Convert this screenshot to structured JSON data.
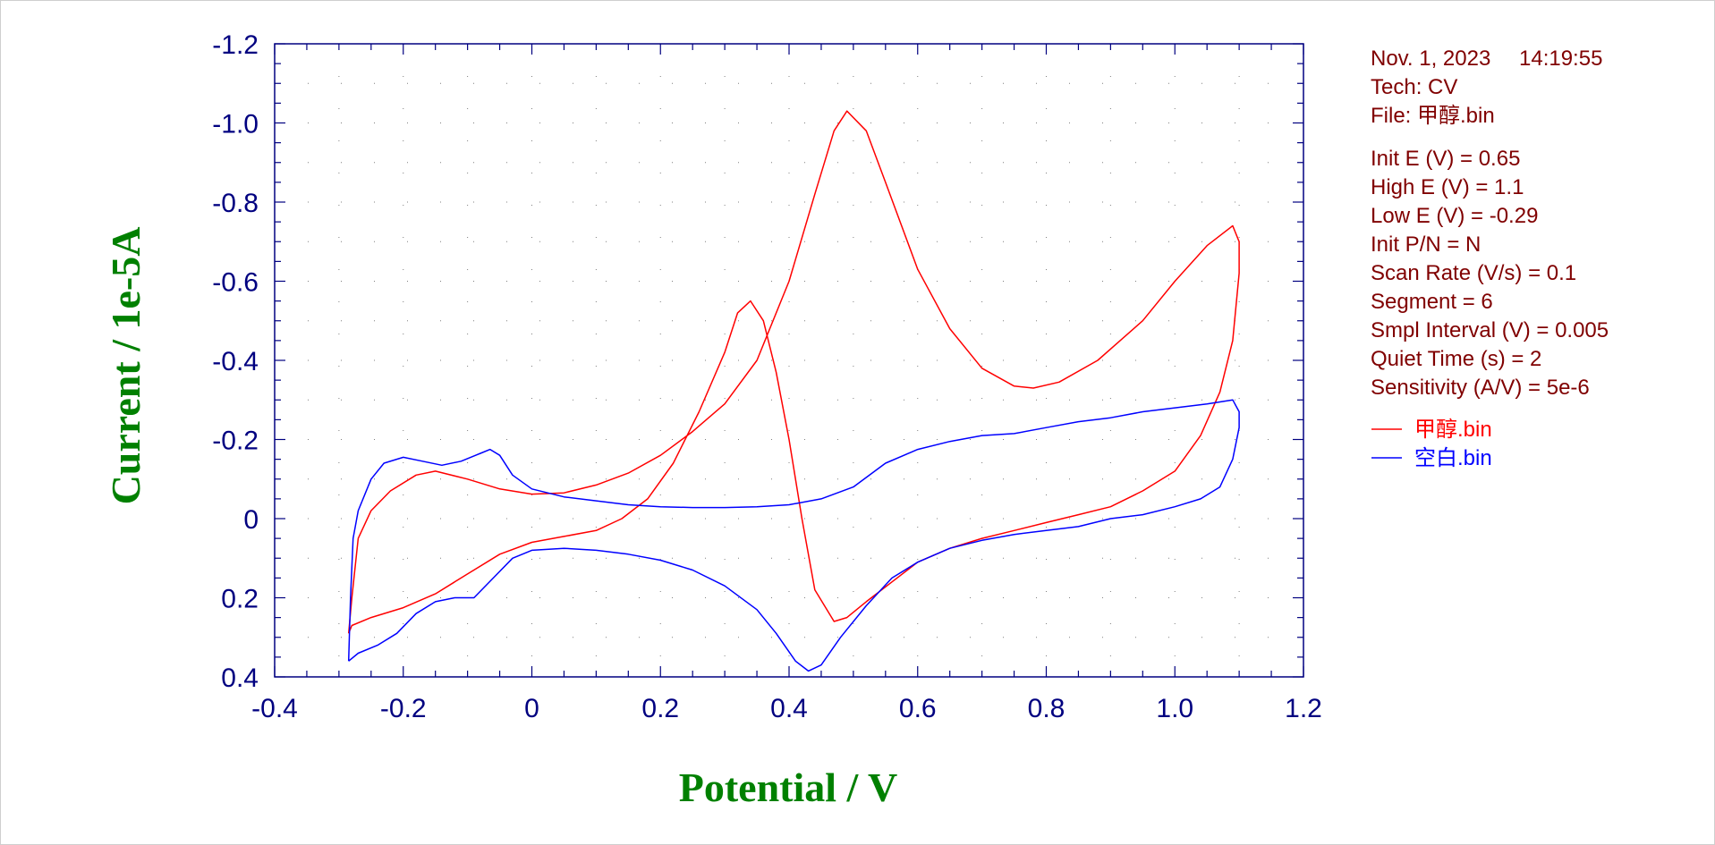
{
  "info": {
    "date": "Nov. 1, 2023",
    "time": "14:19:55",
    "tech": "Tech: CV",
    "file": "File: 甲醇.bin",
    "params": [
      "Init E (V) = 0.65",
      "High E (V) = 1.1",
      "Low E (V) = -0.29",
      "Init P/N = N",
      "Scan Rate (V/s) = 0.1",
      "Segment = 6",
      "Smpl Interval (V) = 0.005",
      "Quiet Time (s) = 2",
      "Sensitivity (A/V) = 5e-6"
    ]
  },
  "colors": {
    "axis": "#000080",
    "grid": "#7f7f7f",
    "axis_title": "#008000",
    "info_text": "#800000",
    "methanol": "#ff0000",
    "blank": "#0000ff"
  },
  "chart_data": {
    "type": "line",
    "xlabel": "Potential / V",
    "ylabel": "Current / 1e-5A",
    "xlim": [
      -0.4,
      1.2
    ],
    "ylim": [
      0.4,
      -1.2
    ],
    "x_ticks": [
      "-0.4",
      "-0.2",
      "0",
      "0.2",
      "0.4",
      "0.6",
      "0.8",
      "1.0",
      "1.2"
    ],
    "y_ticks": [
      "-1.2",
      "-1.0",
      "-0.8",
      "-0.6",
      "-0.4",
      "-0.2",
      "0",
      "0.2",
      "0.4"
    ],
    "grid": "dotted",
    "legend": "right",
    "series": [
      {
        "name": "甲醇.bin",
        "color": "#ff0000",
        "points": [
          [
            -0.285,
            0.29
          ],
          [
            -0.28,
            0.2
          ],
          [
            -0.27,
            0.05
          ],
          [
            -0.25,
            -0.02
          ],
          [
            -0.22,
            -0.07
          ],
          [
            -0.18,
            -0.11
          ],
          [
            -0.15,
            -0.12
          ],
          [
            -0.1,
            -0.1
          ],
          [
            -0.05,
            -0.075
          ],
          [
            0.0,
            -0.062
          ],
          [
            0.05,
            -0.065
          ],
          [
            0.1,
            -0.085
          ],
          [
            0.15,
            -0.115
          ],
          [
            0.2,
            -0.16
          ],
          [
            0.25,
            -0.22
          ],
          [
            0.3,
            -0.29
          ],
          [
            0.35,
            -0.4
          ],
          [
            0.4,
            -0.6
          ],
          [
            0.44,
            -0.82
          ],
          [
            0.47,
            -0.98
          ],
          [
            0.49,
            -1.03
          ],
          [
            0.52,
            -0.98
          ],
          [
            0.55,
            -0.85
          ],
          [
            0.6,
            -0.63
          ],
          [
            0.65,
            -0.48
          ],
          [
            0.7,
            -0.38
          ],
          [
            0.75,
            -0.335
          ],
          [
            0.78,
            -0.33
          ],
          [
            0.82,
            -0.345
          ],
          [
            0.88,
            -0.4
          ],
          [
            0.95,
            -0.5
          ],
          [
            1.0,
            -0.6
          ],
          [
            1.05,
            -0.69
          ],
          [
            1.09,
            -0.74
          ],
          [
            1.1,
            -0.7
          ],
          [
            1.1,
            -0.62
          ],
          [
            1.09,
            -0.45
          ],
          [
            1.07,
            -0.32
          ],
          [
            1.04,
            -0.21
          ],
          [
            1.0,
            -0.12
          ],
          [
            0.95,
            -0.07
          ],
          [
            0.9,
            -0.03
          ],
          [
            0.85,
            -0.01
          ],
          [
            0.8,
            0.01
          ],
          [
            0.75,
            0.03
          ],
          [
            0.7,
            0.05
          ],
          [
            0.65,
            0.075
          ],
          [
            0.6,
            0.11
          ],
          [
            0.56,
            0.16
          ],
          [
            0.52,
            0.21
          ],
          [
            0.49,
            0.25
          ],
          [
            0.47,
            0.26
          ],
          [
            0.44,
            0.18
          ],
          [
            0.42,
            0.0
          ],
          [
            0.4,
            -0.2
          ],
          [
            0.38,
            -0.37
          ],
          [
            0.36,
            -0.5
          ],
          [
            0.34,
            -0.55
          ],
          [
            0.32,
            -0.52
          ],
          [
            0.3,
            -0.42
          ],
          [
            0.26,
            -0.27
          ],
          [
            0.22,
            -0.14
          ],
          [
            0.18,
            -0.05
          ],
          [
            0.14,
            0.0
          ],
          [
            0.1,
            0.03
          ],
          [
            0.05,
            0.045
          ],
          [
            0.0,
            0.06
          ],
          [
            -0.05,
            0.09
          ],
          [
            -0.1,
            0.14
          ],
          [
            -0.15,
            0.19
          ],
          [
            -0.2,
            0.225
          ],
          [
            -0.25,
            0.25
          ],
          [
            -0.28,
            0.27
          ],
          [
            -0.285,
            0.29
          ]
        ]
      },
      {
        "name": "空白.bin",
        "color": "#0000ff",
        "points": [
          [
            -0.285,
            0.36
          ],
          [
            -0.282,
            0.2
          ],
          [
            -0.278,
            0.05
          ],
          [
            -0.27,
            -0.02
          ],
          [
            -0.25,
            -0.1
          ],
          [
            -0.23,
            -0.14
          ],
          [
            -0.2,
            -0.155
          ],
          [
            -0.17,
            -0.145
          ],
          [
            -0.14,
            -0.135
          ],
          [
            -0.11,
            -0.145
          ],
          [
            -0.08,
            -0.165
          ],
          [
            -0.065,
            -0.175
          ],
          [
            -0.05,
            -0.16
          ],
          [
            -0.03,
            -0.11
          ],
          [
            0.0,
            -0.075
          ],
          [
            0.05,
            -0.055
          ],
          [
            0.1,
            -0.045
          ],
          [
            0.15,
            -0.035
          ],
          [
            0.2,
            -0.03
          ],
          [
            0.25,
            -0.028
          ],
          [
            0.3,
            -0.028
          ],
          [
            0.35,
            -0.03
          ],
          [
            0.4,
            -0.035
          ],
          [
            0.45,
            -0.05
          ],
          [
            0.5,
            -0.08
          ],
          [
            0.55,
            -0.14
          ],
          [
            0.6,
            -0.175
          ],
          [
            0.65,
            -0.195
          ],
          [
            0.7,
            -0.21
          ],
          [
            0.75,
            -0.215
          ],
          [
            0.8,
            -0.23
          ],
          [
            0.85,
            -0.245
          ],
          [
            0.9,
            -0.255
          ],
          [
            0.95,
            -0.27
          ],
          [
            1.0,
            -0.28
          ],
          [
            1.05,
            -0.29
          ],
          [
            1.09,
            -0.3
          ],
          [
            1.1,
            -0.27
          ],
          [
            1.1,
            -0.23
          ],
          [
            1.09,
            -0.15
          ],
          [
            1.07,
            -0.08
          ],
          [
            1.04,
            -0.05
          ],
          [
            1.0,
            -0.03
          ],
          [
            0.95,
            -0.01
          ],
          [
            0.9,
            0.0
          ],
          [
            0.85,
            0.02
          ],
          [
            0.8,
            0.03
          ],
          [
            0.75,
            0.04
          ],
          [
            0.7,
            0.055
          ],
          [
            0.65,
            0.075
          ],
          [
            0.6,
            0.11
          ],
          [
            0.56,
            0.15
          ],
          [
            0.52,
            0.22
          ],
          [
            0.48,
            0.3
          ],
          [
            0.45,
            0.37
          ],
          [
            0.43,
            0.385
          ],
          [
            0.41,
            0.36
          ],
          [
            0.38,
            0.29
          ],
          [
            0.35,
            0.23
          ],
          [
            0.3,
            0.17
          ],
          [
            0.25,
            0.13
          ],
          [
            0.2,
            0.105
          ],
          [
            0.15,
            0.09
          ],
          [
            0.1,
            0.08
          ],
          [
            0.05,
            0.075
          ],
          [
            0.0,
            0.08
          ],
          [
            -0.03,
            0.1
          ],
          [
            -0.06,
            0.15
          ],
          [
            -0.09,
            0.2
          ],
          [
            -0.12,
            0.2
          ],
          [
            -0.15,
            0.21
          ],
          [
            -0.18,
            0.24
          ],
          [
            -0.21,
            0.29
          ],
          [
            -0.24,
            0.32
          ],
          [
            -0.27,
            0.34
          ],
          [
            -0.285,
            0.36
          ]
        ]
      }
    ]
  }
}
